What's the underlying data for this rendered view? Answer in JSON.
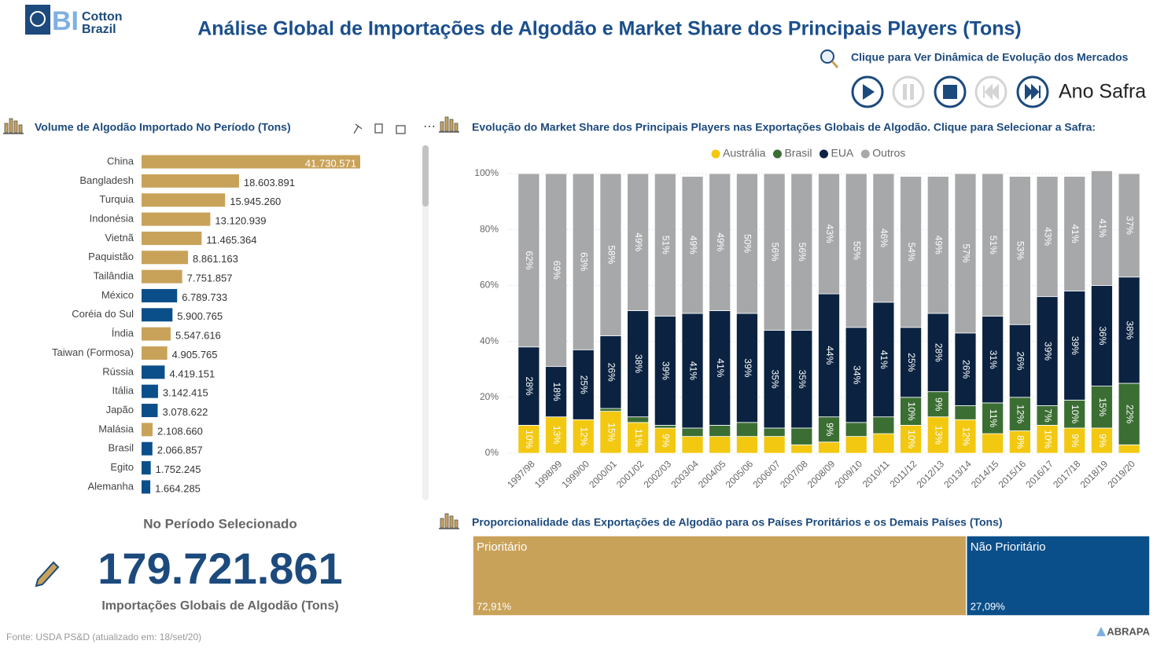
{
  "header": {
    "logo_mark": "BI",
    "logo_text": [
      "Cotton",
      "Brazil"
    ],
    "title": "Análise Global de Importações de Algodão e Market Share dos Principais Players (Tons)",
    "link": "Clique para Ver Dinâmica de Evolução dos Mercados",
    "play_axis": "Ano Safra"
  },
  "chart_data": [
    {
      "type": "barh",
      "title": "Volume de Algodão Importado No Período (Tons)",
      "categories": [
        "China",
        "Bangladesh",
        "Turquia",
        "Indonésia",
        "Vietnã",
        "Paquistão",
        "Tailândia",
        "México",
        "Coréia do Sul",
        "Índia",
        "Taiwan (Formosa)",
        "Rússia",
        "Itália",
        "Japão",
        "Malásia",
        "Brasil",
        "Egito",
        "Alemanha"
      ],
      "values": [
        41730571,
        18603891,
        15945260,
        13120939,
        11465364,
        8861163,
        7751857,
        6789733,
        5900765,
        5547616,
        4905765,
        4419151,
        3142415,
        3078622,
        2108660,
        2066857,
        1752245,
        1664285
      ],
      "value_labels": [
        "41.730.571",
        "18.603.891",
        "15.945.260",
        "13.120.939",
        "11.465.364",
        "8.861.163",
        "7.751.857",
        "6.789.733",
        "5.900.765",
        "5.547.616",
        "4.905.765",
        "4.419.151",
        "3.142.415",
        "3.078.622",
        "2.108.660",
        "2.066.857",
        "1.752.245",
        "1.664.285"
      ],
      "colors": [
        "#c9a25a",
        "#c9a25a",
        "#c9a25a",
        "#c9a25a",
        "#c9a25a",
        "#c9a25a",
        "#c9a25a",
        "#0b4f8a",
        "#0b4f8a",
        "#c9a25a",
        "#c9a25a",
        "#0b4f8a",
        "#0b4f8a",
        "#0b4f8a",
        "#c9a25a",
        "#0b4f8a",
        "#0b4f8a",
        "#0b4f8a"
      ]
    },
    {
      "type": "stackedbar",
      "title": "Evolução do Market Share dos Principais Players nas Exportações Globais de Algodão. Clique para Selecionar a Safra:",
      "categories": [
        "1997/98",
        "1998/99",
        "1999/00",
        "2000/01",
        "2001/02",
        "2002/03",
        "2003/04",
        "2004/05",
        "2005/06",
        "2006/07",
        "2007/08",
        "2008/09",
        "2009/10",
        "2010/11",
        "2011/12",
        "2012/13",
        "2013/14",
        "2014/15",
        "2015/16",
        "2016/17",
        "2017/18",
        "2018/19",
        "2019/20"
      ],
      "series": [
        {
          "name": "Austrália",
          "color": "#f2c811",
          "values": [
            10,
            13,
            12,
            15,
            11,
            9,
            6,
            6,
            6,
            6,
            3,
            4,
            6,
            7,
            10,
            13,
            12,
            7,
            8,
            10,
            9,
            9,
            3
          ],
          "value_labels": [
            "10%",
            "13%",
            "12%",
            "15%",
            "11%",
            "9%",
            null,
            null,
            null,
            null,
            null,
            null,
            null,
            null,
            "10%",
            "13%",
            "12%",
            null,
            "8%",
            "10%",
            "9%",
            "9%",
            null
          ]
        },
        {
          "name": "Brasil",
          "color": "#3b6e33",
          "values": [
            0,
            0,
            0,
            1,
            2,
            1,
            3,
            4,
            5,
            3,
            6,
            9,
            5,
            6,
            10,
            9,
            5,
            11,
            12,
            7,
            10,
            15,
            22
          ],
          "value_labels": [
            null,
            null,
            null,
            null,
            null,
            null,
            null,
            null,
            null,
            null,
            null,
            "9%",
            null,
            null,
            "10%",
            "9%",
            null,
            "11%",
            "12%",
            "7%",
            "10%",
            "15%",
            "22%"
          ]
        },
        {
          "name": "EUA",
          "color": "#0b2341",
          "values": [
            28,
            18,
            25,
            26,
            38,
            39,
            41,
            41,
            39,
            35,
            35,
            44,
            34,
            41,
            25,
            28,
            26,
            31,
            26,
            39,
            39,
            36,
            38
          ],
          "value_labels": [
            "28%",
            "18%",
            "25%",
            "26%",
            "38%",
            "39%",
            "41%",
            "41%",
            "39%",
            "35%",
            "35%",
            "44%",
            "34%",
            "41%",
            "25%",
            "28%",
            "26%",
            "31%",
            "26%",
            "39%",
            "39%",
            "36%",
            "38%"
          ]
        },
        {
          "name": "Outros",
          "color": "#a7a8aa",
          "values": [
            62,
            69,
            63,
            58,
            49,
            51,
            49,
            49,
            50,
            56,
            56,
            43,
            55,
            46,
            54,
            49,
            57,
            51,
            53,
            43,
            41,
            41,
            37
          ],
          "value_labels": [
            "62%",
            "69%",
            "63%",
            "58%",
            "49%",
            "51%",
            "49%",
            "49%",
            "50%",
            "56%",
            "56%",
            "43%",
            "55%",
            "46%",
            "54%",
            "49%",
            "57%",
            "51%",
            "53%",
            "43%",
            "41%",
            "41%",
            "37%"
          ]
        }
      ],
      "ylim": [
        0,
        100
      ],
      "yticks": [
        {
          "value": 0,
          "label": "0%"
        },
        {
          "value": 20,
          "label": "20%"
        },
        {
          "value": 40,
          "label": "40%"
        },
        {
          "value": 60,
          "label": "60%"
        },
        {
          "value": 80,
          "label": "80%"
        },
        {
          "value": 100,
          "label": "100%"
        }
      ],
      "grid": true,
      "legend": "top"
    },
    {
      "type": "treemap",
      "title": "Proporcionalidade das Exportações de Algodão para os Países Proritários e os Demais Países (Tons)",
      "categories": [
        "Prioritário",
        "Não Prioritário"
      ],
      "values": [
        72.91,
        27.09
      ],
      "value_labels": [
        "72,91%",
        "27,09%"
      ],
      "colors": [
        "#c9a25a",
        "#0b4f8a"
      ]
    }
  ],
  "kpi": {
    "label": "No Período Selecionado",
    "value": "179.721.861",
    "caption": "Importações Globais de Algodão (Tons)"
  },
  "footer": {
    "source": "Fonte: USDA PS&D (atualizado em: 18/set/20)",
    "brand": "ABRAPA"
  }
}
